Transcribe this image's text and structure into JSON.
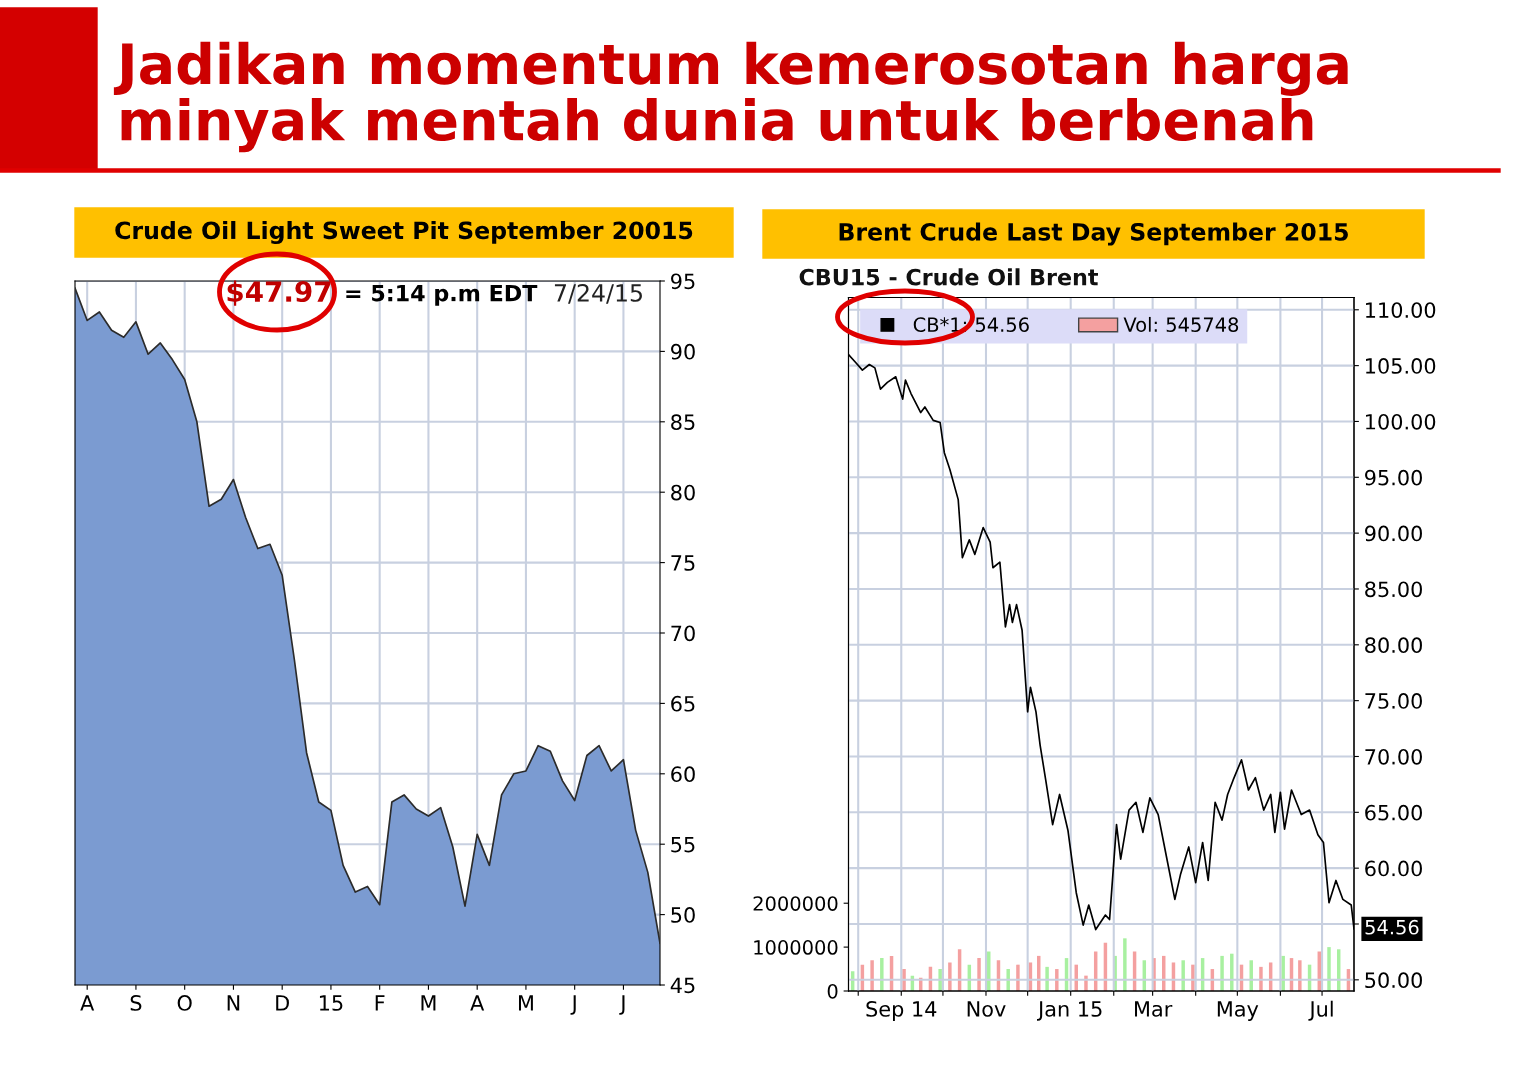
{
  "chart_data": [
    {
      "type": "area",
      "title": "Crude Oil Light Sweet Pit September 20015",
      "annotations": [
        "Jadikan momentum kemerosotan harga\nminyak mentah dunia untuk berbenah",
        "$47.97",
        "= 5:14 p.m EDT",
        "7/24/15"
      ],
      "series": [
        {
          "color": "#7b9bd1",
          "values": [
            94.5,
            92.2,
            92.8,
            91.5,
            91.0,
            92.1,
            89.8,
            90.6,
            89.4,
            88.0,
            85.0,
            79.0,
            79.5,
            80.9,
            78.2,
            76.0,
            76.3,
            74.1,
            68.1,
            61.5,
            58.0,
            57.4,
            53.5,
            51.6,
            52.0,
            50.7,
            58.0,
            58.5,
            57.5,
            57.0,
            57.6,
            54.8,
            50.6,
            55.7,
            53.5,
            58.5,
            60.0,
            60.2,
            62.0,
            61.6,
            59.5,
            58.1,
            61.3,
            62.0,
            60.2,
            61.0,
            56.0,
            53.0,
            47.97
          ]
        }
      ],
      "categories": [
        null,
        "A",
        null,
        null,
        null,
        "S",
        null,
        null,
        null,
        "O",
        null,
        null,
        null,
        "N",
        null,
        null,
        null,
        "D",
        null,
        null,
        null,
        "15",
        null,
        null,
        null,
        "F",
        null,
        null,
        null,
        "M",
        null,
        null,
        null,
        "A",
        null,
        null,
        null,
        "M",
        null,
        null,
        null,
        "J",
        null,
        null,
        null,
        "J",
        null,
        null,
        null
      ],
      "ylim": [
        45,
        95
      ],
      "yticks": [
        45,
        50,
        55,
        60,
        65,
        70,
        75,
        80,
        85,
        90,
        95
      ],
      "grid": true
    },
    {
      "type": "line",
      "title": "Brent Crude Last Day September 2015",
      "subtitle": "CBU15 - Crude Oil Brent",
      "annotations": [
        {
          "text": "54.56",
          "x": "2015-07-24",
          "y": 54.56
        }
      ],
      "series": [
        {
          "name": "CB*1: 54.56",
          "color": "#000000",
          "x": [
            "2014-07-25",
            "2014-07-30",
            "2014-08-04",
            "2014-08-09",
            "2014-08-13",
            "2014-08-17",
            "2014-08-22",
            "2014-08-28",
            "2014-09-02",
            "2014-09-04",
            "2014-09-08",
            "2014-09-15",
            "2014-09-18",
            "2014-09-24",
            "2014-09-29",
            "2014-10-02",
            "2014-10-06",
            "2014-10-12",
            "2014-10-15",
            "2014-10-20",
            "2014-10-24",
            "2014-10-30",
            "2014-11-04",
            "2014-11-06",
            "2014-11-11",
            "2014-11-15",
            "2014-11-18",
            "2014-11-20",
            "2014-11-23",
            "2014-11-27",
            "2014-12-01",
            "2014-12-03",
            "2014-12-07",
            "2014-12-10",
            "2014-12-14",
            "2014-12-19",
            "2014-12-24",
            "2014-12-30",
            "2015-01-05",
            "2015-01-10",
            "2015-01-14",
            "2015-01-19",
            "2015-01-26",
            "2015-01-29",
            "2015-02-03",
            "2015-02-06",
            "2015-02-12",
            "2015-02-17",
            "2015-02-22",
            "2015-02-27",
            "2015-03-05",
            "2015-03-11",
            "2015-03-17",
            "2015-03-21",
            "2015-03-27",
            "2015-04-01",
            "2015-04-06",
            "2015-04-10",
            "2015-04-15",
            "2015-04-20",
            "2015-04-24",
            "2015-04-28",
            "2015-05-04",
            "2015-05-09",
            "2015-05-14",
            "2015-05-20",
            "2015-05-25",
            "2015-05-28",
            "2015-06-01",
            "2015-06-04",
            "2015-06-09",
            "2015-06-16",
            "2015-06-22",
            "2015-06-28",
            "2015-07-02",
            "2015-07-06",
            "2015-07-11",
            "2015-07-16",
            "2015-07-22",
            "2015-07-24"
          ],
          "values": [
            106.0,
            105.3,
            104.6,
            105.1,
            104.8,
            102.9,
            103.5,
            104.0,
            102.0,
            103.7,
            102.5,
            100.8,
            101.3,
            100.1,
            99.9,
            97.2,
            95.7,
            93.0,
            87.8,
            89.4,
            88.1,
            90.5,
            89.2,
            86.9,
            87.4,
            81.6,
            83.6,
            82.0,
            83.6,
            81.3,
            74.0,
            76.2,
            74.0,
            71.0,
            67.9,
            63.9,
            66.6,
            63.4,
            57.8,
            54.9,
            56.7,
            54.5,
            55.8,
            55.4,
            63.9,
            60.8,
            65.2,
            65.9,
            63.2,
            66.3,
            64.8,
            61.0,
            57.2,
            59.4,
            61.9,
            58.7,
            62.3,
            58.9,
            65.9,
            64.3,
            66.6,
            67.9,
            69.7,
            67.0,
            68.1,
            65.2,
            66.6,
            63.2,
            66.8,
            63.5,
            67.0,
            64.8,
            65.2,
            63.0,
            62.3,
            56.9,
            58.9,
            57.2,
            56.7,
            54.56
          ]
        },
        {
          "name": "Vol: 545748",
          "type": "bar",
          "axis": "y2",
          "color": "#f4a0a0",
          "x": [
            "2014-07-28",
            "2014-08-04",
            "2014-08-11",
            "2014-08-18",
            "2014-08-25",
            "2014-09-03",
            "2014-09-09",
            "2014-09-15",
            "2014-09-22",
            "2014-09-29",
            "2014-10-06",
            "2014-10-13",
            "2014-10-20",
            "2014-10-27",
            "2014-11-03",
            "2014-11-10",
            "2014-11-17",
            "2014-11-24",
            "2014-12-03",
            "2014-12-09",
            "2014-12-15",
            "2014-12-22",
            "2014-12-29",
            "2015-01-05",
            "2015-01-12",
            "2015-01-19",
            "2015-01-26",
            "2015-02-02",
            "2015-02-09",
            "2015-02-16",
            "2015-02-23",
            "2015-03-02",
            "2015-03-09",
            "2015-03-16",
            "2015-03-23",
            "2015-03-30",
            "2015-04-06",
            "2015-04-13",
            "2015-04-20",
            "2015-04-27",
            "2015-05-04",
            "2015-05-11",
            "2015-05-18",
            "2015-05-25",
            "2015-06-03",
            "2015-06-09",
            "2015-06-15",
            "2015-06-22",
            "2015-06-29",
            "2015-07-06",
            "2015-07-13",
            "2015-07-20"
          ],
          "values": [
            450000,
            600000,
            700000,
            750000,
            800000,
            500000,
            350000,
            300000,
            550000,
            500000,
            650000,
            950000,
            600000,
            750000,
            900000,
            700000,
            500000,
            600000,
            650000,
            800000,
            550000,
            500000,
            750000,
            600000,
            350000,
            900000,
            1100000,
            800000,
            1200000,
            900000,
            700000,
            750000,
            800000,
            650000,
            700000,
            600000,
            750000,
            500000,
            800000,
            850000,
            600000,
            700000,
            550000,
            650000,
            800000,
            750000,
            700000,
            600000,
            900000,
            1000000,
            950000,
            500000
          ],
          "colors": [
            "#a8f0a0",
            "#f4a0a0",
            "#f4a0a0",
            "#a8f0a0",
            "#f4a0a0",
            "#f4a0a0",
            "#a8f0a0",
            "#f4a0a0",
            "#f4a0a0",
            "#a8f0a0",
            "#f4a0a0",
            "#f4a0a0",
            "#a8f0a0",
            "#f4a0a0",
            "#a8f0a0",
            "#f4a0a0",
            "#a8f0a0",
            "#f4a0a0",
            "#f4a0a0",
            "#f4a0a0",
            "#a8f0a0",
            "#f4a0a0",
            "#a8f0a0",
            "#f4a0a0",
            "#f4a0a0",
            "#f4a0a0",
            "#f4a0a0",
            "#a8f0a0",
            "#a8f0a0",
            "#f4a0a0",
            "#a8f0a0",
            "#f4a0a0",
            "#f4a0a0",
            "#f4a0a0",
            "#a8f0a0",
            "#f4a0a0",
            "#a8f0a0",
            "#f4a0a0",
            "#a8f0a0",
            "#a8f0a0",
            "#f4a0a0",
            "#a8f0a0",
            "#f4a0a0",
            "#f4a0a0",
            "#a8f0a0",
            "#f4a0a0",
            "#f4a0a0",
            "#a8f0a0",
            "#f4a0a0",
            "#a8f0a0",
            "#a8f0a0",
            "#f4a0a0"
          ]
        }
      ],
      "xlim": [
        "2014-07-25",
        "2015-07-24"
      ],
      "xticks": [
        {
          "value": "2014-08-01",
          "label": null
        },
        {
          "value": "2014-09-01",
          "label": "Sep 14"
        },
        {
          "value": "2014-10-01",
          "label": null
        },
        {
          "value": "2014-11-01",
          "label": "Nov"
        },
        {
          "value": "2014-12-01",
          "label": null
        },
        {
          "value": "2015-01-01",
          "label": "Jan 15"
        },
        {
          "value": "2015-02-01",
          "label": null
        },
        {
          "value": "2015-03-01",
          "label": "Mar"
        },
        {
          "value": "2015-04-01",
          "label": null
        },
        {
          "value": "2015-05-01",
          "label": "May"
        },
        {
          "value": "2015-06-01",
          "label": null
        },
        {
          "value": "2015-07-01",
          "label": "Jul"
        }
      ],
      "ylim": [
        49,
        111.1
      ],
      "yticks": [
        {
          "value": 50,
          "label": "50.00"
        },
        {
          "value": 55,
          "label": null
        },
        {
          "value": 60,
          "label": "60.00"
        },
        {
          "value": 65,
          "label": "65.00"
        },
        {
          "value": 70,
          "label": "70.00"
        },
        {
          "value": 75,
          "label": "75.00"
        },
        {
          "value": 80,
          "label": "80.00"
        },
        {
          "value": 85,
          "label": "85.00"
        },
        {
          "value": 90,
          "label": "90.00"
        },
        {
          "value": 95,
          "label": "95.00"
        },
        {
          "value": 100,
          "label": "100.00"
        },
        {
          "value": 105,
          "label": "105.00"
        },
        {
          "value": 110,
          "label": "110.00"
        }
      ],
      "y2lim": [
        0,
        15800000
      ],
      "y2ticks": [
        0,
        1000000,
        2000000
      ],
      "grid": true,
      "legend": "top left"
    }
  ]
}
